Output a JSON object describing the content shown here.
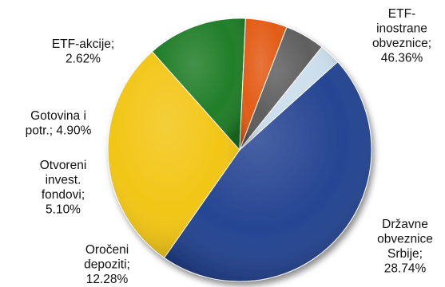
{
  "chart_data": {
    "type": "pie",
    "start_angle_deg": 48,
    "direction": "clockwise",
    "slices": [
      {
        "label": [
          "ETF-",
          "inostrane",
          "obveznice;",
          "46.36%"
        ],
        "value": 46.36,
        "color": "#1f3f8f"
      },
      {
        "label": [
          "Državne",
          "obveznice",
          "Srbije;",
          "28.74%"
        ],
        "value": 28.74,
        "color": "#f2c40f"
      },
      {
        "label": [
          "Oročeni",
          "depoziti;",
          "12.28%"
        ],
        "value": 12.28,
        "color": "#1a7a22"
      },
      {
        "label": [
          "Otvoreni",
          "invest.",
          "fondovi;",
          "5.10%"
        ],
        "value": 5.1,
        "color": "#e2570f"
      },
      {
        "label": [
          "Gotovina i",
          "potr.; 4.90%"
        ],
        "value": 4.9,
        "color": "#5a5a5a"
      },
      {
        "label": [
          "ETF-akcije;",
          "2.62%"
        ],
        "value": 2.62,
        "color": "#c9dceb"
      }
    ]
  }
}
